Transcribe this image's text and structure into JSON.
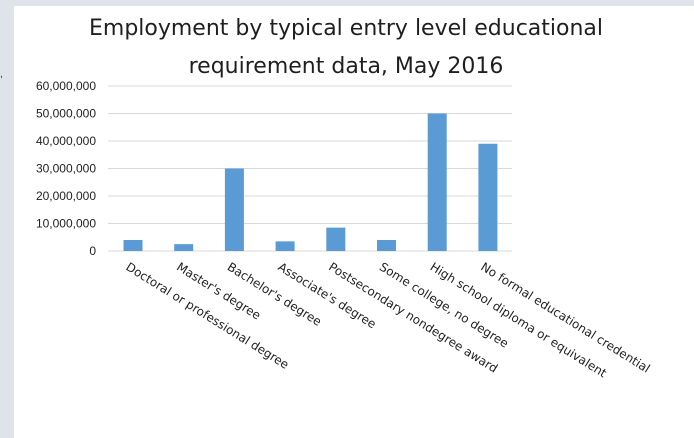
{
  "chart_data": {
    "type": "bar",
    "title_lines": [
      "Employment  by typical entry level educational",
      "requirement  data, May 2016"
    ],
    "categories": [
      "Doctoral or professional degree",
      "Master's degree",
      "Bachelor's degree",
      "Associate's degree",
      "Postsecondary nondegree award",
      "Some college, no degree",
      "High school diploma or equivalent",
      "No formal educational credential"
    ],
    "values": [
      4000000,
      2500000,
      30000000,
      3500000,
      8500000,
      4000000,
      50000000,
      39000000
    ],
    "y_ticks": [
      "0",
      "10,000,000",
      "20,000,000",
      "30,000,000",
      "40,000,000",
      "50,000,000",
      "60,000,000"
    ],
    "ylim": [
      0,
      60000000
    ],
    "grid": true,
    "legend": "none",
    "bar_color": "#5b9bd5",
    "grid_color": "#d9d9d9"
  }
}
